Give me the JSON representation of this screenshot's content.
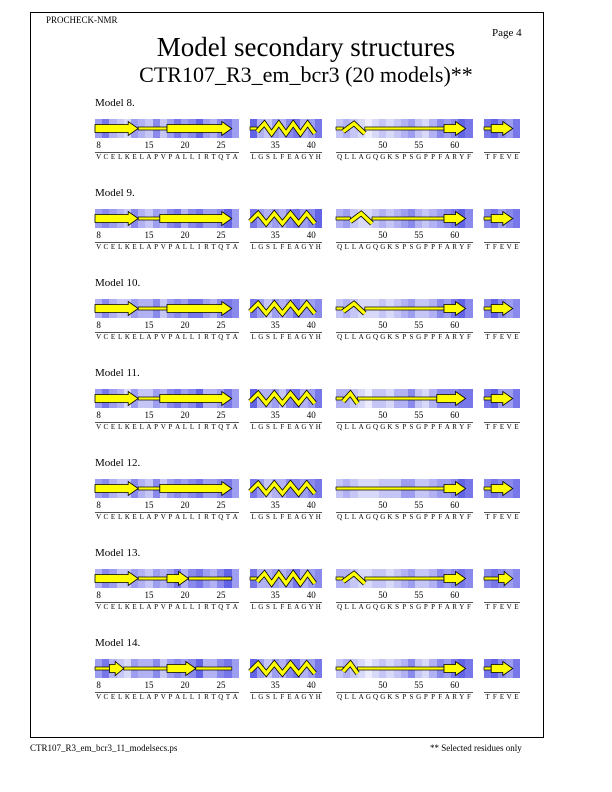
{
  "header": {
    "program": "PROCHECK-NMR",
    "page": "Page  4",
    "title": "Model secondary structures",
    "subtitle": "CTR107_R3_em_bcr3 (20 models)**"
  },
  "footer": {
    "file": "CTR107_R3_em_bcr3_11_modelsecs.ps",
    "note": "** Selected residues only"
  },
  "colors": {
    "strand": "#ffff00",
    "outline": "#000000",
    "shade_dark": "#3c3ce0",
    "shade_light": "#ffffff"
  },
  "segments": [
    {
      "start": 8,
      "sequence": [
        "V",
        "C",
        "E",
        "L",
        "K",
        "E",
        "L",
        "A",
        "P",
        "V",
        "P",
        "A",
        "L",
        "L",
        "I",
        "R",
        "T",
        "Q",
        "T",
        "A"
      ]
    },
    {
      "start": 32,
      "sequence": [
        "L",
        "G",
        "S",
        "L",
        "F",
        "E",
        "A",
        "G",
        "Y",
        "H"
      ]
    },
    {
      "start": 44,
      "sequence": [
        "Q",
        "L",
        "L",
        "A",
        "G",
        "Q",
        "G",
        "K",
        "S",
        "P",
        "S",
        "G",
        "P",
        "P",
        "F",
        "A",
        "R",
        "Y",
        "F"
      ]
    },
    {
      "start": 66,
      "sequence": [
        "T",
        "F",
        "E",
        "V",
        "E"
      ]
    }
  ],
  "tick_labels": [
    8,
    15,
    20,
    25,
    35,
    40,
    50,
    55,
    60
  ],
  "models": [
    {
      "label": "Model  8.",
      "shading": [
        0.5,
        0.7,
        0.4,
        0.3,
        0.2,
        0.5,
        0.4,
        0.3,
        0.6,
        0.3,
        0.5,
        0.7,
        0.5,
        0.6,
        0.8,
        0.5,
        0.4,
        0.6,
        0.7,
        0.5,
        0.8,
        0.4,
        0.3,
        0.5,
        0.4,
        0.6,
        0.7,
        0.4,
        0.5,
        0.7,
        0.3,
        0.4,
        0.3,
        0.2,
        0.1,
        0.2,
        0.3,
        0.2,
        0.3,
        0.4,
        0.5,
        0.3,
        0.2,
        0.4,
        0.6,
        0.5,
        0.6,
        0.8,
        0.7,
        0.7,
        0.8,
        0.6,
        0.5,
        0.7
      ],
      "elements": [
        {
          "type": "strand",
          "from": 8,
          "to": 14
        },
        {
          "type": "coil",
          "from": 14,
          "to": 18
        },
        {
          "type": "strand",
          "from": 18,
          "to": 27
        },
        {
          "type": "coil",
          "from": 32,
          "to": 33
        },
        {
          "type": "helix",
          "from": 33,
          "to": 41
        },
        {
          "type": "coil",
          "from": 44,
          "to": 45
        },
        {
          "type": "turn",
          "from": 45,
          "to": 48
        },
        {
          "type": "coil",
          "from": 48,
          "to": 59
        },
        {
          "type": "strand",
          "from": 59,
          "to": 62
        },
        {
          "type": "coil",
          "from": 66,
          "to": 67
        },
        {
          "type": "strand",
          "from": 67,
          "to": 70
        }
      ]
    },
    {
      "label": "Model  9.",
      "shading": [
        0.5,
        0.6,
        0.5,
        0.4,
        0.3,
        0.6,
        0.4,
        0.3,
        0.5,
        0.4,
        0.6,
        0.7,
        0.4,
        0.6,
        0.7,
        0.5,
        0.5,
        0.6,
        0.8,
        0.5,
        0.7,
        0.5,
        0.4,
        0.5,
        0.4,
        0.6,
        0.7,
        0.5,
        0.6,
        0.8,
        0.4,
        0.5,
        0.3,
        0.2,
        0.2,
        0.3,
        0.4,
        0.3,
        0.4,
        0.5,
        0.6,
        0.4,
        0.3,
        0.4,
        0.5,
        0.6,
        0.7,
        0.8,
        0.6,
        0.6,
        0.7,
        0.5,
        0.6,
        0.7
      ],
      "elements": [
        {
          "type": "strand",
          "from": 8,
          "to": 14
        },
        {
          "type": "coil",
          "from": 14,
          "to": 17
        },
        {
          "type": "strand",
          "from": 17,
          "to": 27
        },
        {
          "type": "helix",
          "from": 32,
          "to": 41
        },
        {
          "type": "coil",
          "from": 44,
          "to": 46
        },
        {
          "type": "turn",
          "from": 46,
          "to": 49
        },
        {
          "type": "coil",
          "from": 49,
          "to": 59
        },
        {
          "type": "strand",
          "from": 59,
          "to": 62
        },
        {
          "type": "coil",
          "from": 66,
          "to": 67
        },
        {
          "type": "strand",
          "from": 67,
          "to": 70
        }
      ]
    },
    {
      "label": "Model 10.",
      "shading": [
        0.4,
        0.6,
        0.4,
        0.3,
        0.3,
        0.5,
        0.4,
        0.4,
        0.6,
        0.3,
        0.5,
        0.6,
        0.5,
        0.7,
        0.7,
        0.5,
        0.4,
        0.6,
        0.7,
        0.6,
        0.7,
        0.5,
        0.3,
        0.5,
        0.4,
        0.5,
        0.7,
        0.5,
        0.5,
        0.6,
        0.3,
        0.4,
        0.3,
        0.2,
        0.2,
        0.2,
        0.3,
        0.2,
        0.3,
        0.4,
        0.5,
        0.3,
        0.3,
        0.4,
        0.6,
        0.5,
        0.7,
        0.8,
        0.6,
        0.6,
        0.8,
        0.6,
        0.5,
        0.6
      ],
      "elements": [
        {
          "type": "strand",
          "from": 8,
          "to": 14
        },
        {
          "type": "coil",
          "from": 14,
          "to": 18
        },
        {
          "type": "strand",
          "from": 18,
          "to": 27
        },
        {
          "type": "helix",
          "from": 32,
          "to": 41
        },
        {
          "type": "coil",
          "from": 44,
          "to": 45
        },
        {
          "type": "turn",
          "from": 45,
          "to": 48
        },
        {
          "type": "coil",
          "from": 48,
          "to": 59
        },
        {
          "type": "strand",
          "from": 59,
          "to": 62
        },
        {
          "type": "coil",
          "from": 66,
          "to": 67
        },
        {
          "type": "strand",
          "from": 67,
          "to": 70
        }
      ]
    },
    {
      "label": "Model 11.",
      "shading": [
        0.5,
        0.7,
        0.5,
        0.4,
        0.2,
        0.5,
        0.3,
        0.3,
        0.5,
        0.4,
        0.6,
        0.7,
        0.5,
        0.6,
        0.8,
        0.4,
        0.4,
        0.5,
        0.7,
        0.5,
        0.8,
        0.4,
        0.4,
        0.5,
        0.3,
        0.6,
        0.7,
        0.4,
        0.5,
        0.7,
        0.4,
        0.4,
        0.3,
        0.2,
        0.1,
        0.3,
        0.3,
        0.2,
        0.4,
        0.4,
        0.6,
        0.3,
        0.2,
        0.4,
        0.6,
        0.6,
        0.6,
        0.7,
        0.7,
        0.7,
        0.8,
        0.5,
        0.5,
        0.7
      ],
      "elements": [
        {
          "type": "strand",
          "from": 8,
          "to": 14
        },
        {
          "type": "coil",
          "from": 14,
          "to": 17
        },
        {
          "type": "strand",
          "from": 17,
          "to": 27
        },
        {
          "type": "helix",
          "from": 32,
          "to": 41
        },
        {
          "type": "coil",
          "from": 44,
          "to": 45
        },
        {
          "type": "turn",
          "from": 45,
          "to": 47
        },
        {
          "type": "coil",
          "from": 47,
          "to": 58
        },
        {
          "type": "strand",
          "from": 58,
          "to": 62
        },
        {
          "type": "coil",
          "from": 66,
          "to": 67
        },
        {
          "type": "strand",
          "from": 67,
          "to": 70
        }
      ]
    },
    {
      "label": "Model 12.",
      "shading": [
        0.5,
        0.6,
        0.4,
        0.3,
        0.3,
        0.6,
        0.4,
        0.3,
        0.6,
        0.3,
        0.5,
        0.6,
        0.5,
        0.6,
        0.7,
        0.5,
        0.5,
        0.6,
        0.7,
        0.5,
        0.7,
        0.5,
        0.3,
        0.4,
        0.4,
        0.6,
        0.6,
        0.5,
        0.6,
        0.7,
        0.3,
        0.4,
        0.3,
        0.2,
        0.2,
        0.2,
        0.3,
        0.3,
        0.3,
        0.5,
        0.5,
        0.3,
        0.3,
        0.4,
        0.5,
        0.5,
        0.6,
        0.8,
        0.7,
        0.6,
        0.7,
        0.6,
        0.6,
        0.7
      ],
      "elements": [
        {
          "type": "strand",
          "from": 8,
          "to": 14
        },
        {
          "type": "coil",
          "from": 14,
          "to": 17
        },
        {
          "type": "strand",
          "from": 17,
          "to": 27
        },
        {
          "type": "helix",
          "from": 32,
          "to": 41
        },
        {
          "type": "coil",
          "from": 44,
          "to": 59
        },
        {
          "type": "strand",
          "from": 59,
          "to": 62
        },
        {
          "type": "coil",
          "from": 66,
          "to": 67
        },
        {
          "type": "strand",
          "from": 67,
          "to": 70
        }
      ]
    },
    {
      "label": "Model 13.",
      "shading": [
        0.4,
        0.6,
        0.5,
        0.3,
        0.3,
        0.5,
        0.4,
        0.3,
        0.5,
        0.4,
        0.5,
        0.7,
        0.4,
        0.6,
        0.7,
        0.5,
        0.4,
        0.6,
        0.8,
        0.5,
        0.7,
        0.4,
        0.4,
        0.5,
        0.4,
        0.5,
        0.7,
        0.4,
        0.5,
        0.6,
        0.4,
        0.4,
        0.3,
        0.2,
        0.2,
        0.3,
        0.3,
        0.2,
        0.3,
        0.4,
        0.5,
        0.3,
        0.3,
        0.4,
        0.6,
        0.5,
        0.6,
        0.7,
        0.6,
        0.6,
        0.7,
        0.6,
        0.5,
        0.6
      ],
      "elements": [
        {
          "type": "strand",
          "from": 8,
          "to": 14
        },
        {
          "type": "coil",
          "from": 14,
          "to": 18
        },
        {
          "type": "strand",
          "from": 18,
          "to": 21
        },
        {
          "type": "coil",
          "from": 21,
          "to": 27
        },
        {
          "type": "coil",
          "from": 32,
          "to": 33
        },
        {
          "type": "helix",
          "from": 33,
          "to": 41
        },
        {
          "type": "coil",
          "from": 44,
          "to": 45
        },
        {
          "type": "turn",
          "from": 45,
          "to": 48
        },
        {
          "type": "coil",
          "from": 48,
          "to": 59
        },
        {
          "type": "strand",
          "from": 59,
          "to": 62
        },
        {
          "type": "coil",
          "from": 66,
          "to": 68
        },
        {
          "type": "strand",
          "from": 68,
          "to": 70
        }
      ]
    },
    {
      "label": "Model 14.",
      "shading": [
        0.5,
        0.7,
        0.4,
        0.3,
        0.2,
        0.5,
        0.4,
        0.4,
        0.6,
        0.3,
        0.5,
        0.6,
        0.5,
        0.6,
        0.8,
        0.4,
        0.4,
        0.6,
        0.7,
        0.5,
        0.8,
        0.5,
        0.3,
        0.5,
        0.4,
        0.6,
        0.7,
        0.4,
        0.5,
        0.7,
        0.3,
        0.4,
        0.3,
        0.2,
        0.1,
        0.2,
        0.3,
        0.2,
        0.3,
        0.4,
        0.6,
        0.3,
        0.2,
        0.4,
        0.6,
        0.5,
        0.7,
        0.8,
        0.7,
        0.7,
        0.8,
        0.6,
        0.5,
        0.7
      ],
      "elements": [
        {
          "type": "coil",
          "from": 8,
          "to": 10
        },
        {
          "type": "strand",
          "from": 10,
          "to": 12
        },
        {
          "type": "coil",
          "from": 12,
          "to": 18
        },
        {
          "type": "strand",
          "from": 18,
          "to": 22
        },
        {
          "type": "coil",
          "from": 22,
          "to": 27
        },
        {
          "type": "helix",
          "from": 32,
          "to": 41
        },
        {
          "type": "coil",
          "from": 44,
          "to": 45
        },
        {
          "type": "turn",
          "from": 45,
          "to": 47
        },
        {
          "type": "coil",
          "from": 47,
          "to": 59
        },
        {
          "type": "strand",
          "from": 59,
          "to": 62
        },
        {
          "type": "coil",
          "from": 66,
          "to": 67
        },
        {
          "type": "strand",
          "from": 67,
          "to": 70
        }
      ]
    }
  ]
}
